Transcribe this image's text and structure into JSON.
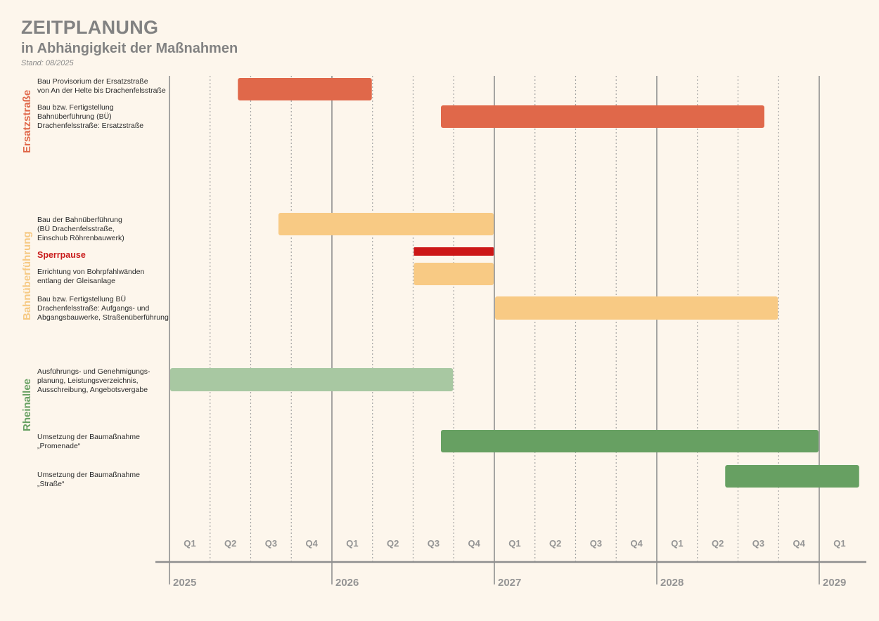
{
  "header": {
    "title": "ZEITPLANUNG",
    "subtitle": "in Abhängigkeit der Maßnahmen",
    "stand": "Stand: 08/2025"
  },
  "chart_data": {
    "type": "gantt",
    "x_axis": {
      "unit": "quarter",
      "start": "2025-Q1",
      "end": "2029-Q1",
      "years": [
        "2025",
        "2026",
        "2027",
        "2028",
        "2029"
      ],
      "quarters": [
        "Q1",
        "Q2",
        "Q3",
        "Q4",
        "Q1",
        "Q2",
        "Q3",
        "Q4",
        "Q1",
        "Q2",
        "Q3",
        "Q4",
        "Q1",
        "Q2",
        "Q3",
        "Q4",
        "Q1"
      ]
    },
    "groups": [
      {
        "name": "Ersatzstraße",
        "color": "#e0684a",
        "tasks": [
          {
            "label": "Bau Provisorium der Ersatzstraße\nvon An der Helte bis Drachenfelsstraße",
            "start": "2025-06",
            "end": "2026-03",
            "color": "#e0684a"
          },
          {
            "label": "Bau bzw. Fertigstellung\nBahnüberführung (BÜ)\nDrachenfelsstraße: Ersatzstraße",
            "start": "2026-09",
            "end": "2028-08",
            "color": "#e0684a"
          }
        ]
      },
      {
        "name": "Bahnüberführung",
        "color": "#f6c983",
        "tasks": [
          {
            "label": "Bau der Bahnüberführung\n(BÜ Drachenfelsstraße,\nEinschub Röhrenbauwerk)",
            "start": "2025-09",
            "end": "2026-12",
            "color": "#f8ca84"
          },
          {
            "label": "Sperrpause",
            "start": "2026-07",
            "end": "2026-12",
            "color": "#cc1717",
            "highlight": true
          },
          {
            "label": "Errichtung von Bohrpfahlwänden\nentlang der Gleisanlage",
            "start": "2026-07",
            "end": "2026-12",
            "color": "#f8ca84"
          },
          {
            "label": "Bau bzw. Fertigstellung BÜ\nDrachenfelsstraße: Aufgangs- und\nAbgangsbauwerke, Straßenüberführung",
            "start": "2027-01",
            "end": "2028-09",
            "color": "#f8ca84"
          }
        ]
      },
      {
        "name": "Rheinallee",
        "color": "#67a062",
        "tasks": [
          {
            "label": "Ausführungs- und Genehmigungs-\nplanung, Leistungsverzeichnis,\nAusschreibung, Angebotsvergabe",
            "start": "2025-01",
            "end": "2026-09",
            "color": "#a8c8a2"
          },
          {
            "label": "Umsetzung der Baumaßnahme\n„Promenade“",
            "start": "2026-09",
            "end": "2028-12",
            "color": "#67a062"
          },
          {
            "label": "Umsetzung der Baumaßnahme\n„Straße“",
            "start": "2028-06",
            "end": "2029-03",
            "color": "#67a062"
          }
        ]
      }
    ]
  }
}
